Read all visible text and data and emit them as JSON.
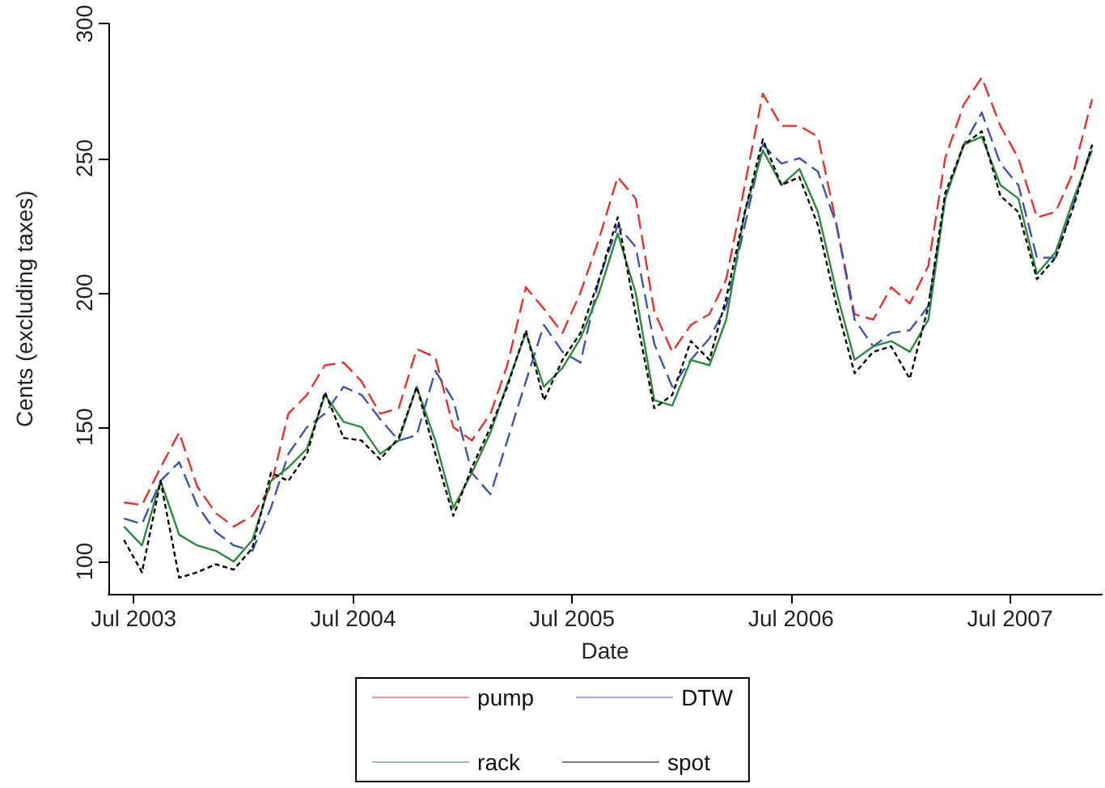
{
  "chart_data": {
    "type": "line",
    "xlabel": "Date",
    "ylabel": "Cents (excluding taxes)",
    "x": [
      "2003-06-15",
      "2003-07-15",
      "2003-08-15",
      "2003-09-15",
      "2003-10-15",
      "2003-11-15",
      "2003-12-15",
      "2004-01-15",
      "2004-02-15",
      "2004-03-15",
      "2004-04-15",
      "2004-05-15",
      "2004-06-15",
      "2004-07-15",
      "2004-08-15",
      "2004-09-15",
      "2004-10-15",
      "2004-11-15",
      "2004-12-15",
      "2005-01-15",
      "2005-02-15",
      "2005-03-15",
      "2005-04-15",
      "2005-05-15",
      "2005-06-15",
      "2005-07-15",
      "2005-08-15",
      "2005-09-15",
      "2005-10-15",
      "2005-11-15",
      "2005-12-15",
      "2006-01-15",
      "2006-02-15",
      "2006-03-15",
      "2006-04-15",
      "2006-05-15",
      "2006-06-15",
      "2006-07-15",
      "2006-08-15",
      "2006-09-15",
      "2006-10-15",
      "2006-11-15",
      "2006-12-15",
      "2007-01-15",
      "2007-02-15",
      "2007-03-15",
      "2007-04-15",
      "2007-05-15",
      "2007-06-15",
      "2007-07-15",
      "2007-08-15",
      "2007-09-15",
      "2007-10-15",
      "2007-11-15"
    ],
    "series": [
      {
        "name": "pump",
        "color": "#e8312a",
        "line_style": "dashed",
        "values": [
          122,
          121,
          135,
          148,
          128,
          118,
          113,
          117,
          128,
          155,
          162,
          173,
          174,
          167,
          155,
          157,
          179,
          176,
          150,
          145,
          155,
          173,
          202,
          194,
          185,
          200,
          220,
          243,
          235,
          193,
          178,
          188,
          192,
          205,
          240,
          274,
          262,
          262,
          258,
          225,
          192,
          190,
          202,
          196,
          210,
          250,
          270,
          280,
          262,
          250,
          228,
          230,
          245,
          272
        ]
      },
      {
        "name": "DTW",
        "color": "#3c55b5",
        "line_style": "dashed",
        "values": [
          116,
          114,
          130,
          137,
          121,
          111,
          106,
          104,
          120,
          140,
          150,
          155,
          165,
          162,
          153,
          145,
          147,
          171,
          160,
          133,
          125,
          145,
          167,
          188,
          178,
          174,
          205,
          225,
          217,
          181,
          165,
          175,
          183,
          195,
          225,
          255,
          248,
          250,
          245,
          225,
          190,
          180,
          185,
          186,
          195,
          235,
          255,
          267,
          248,
          240,
          213,
          213,
          233,
          255
        ]
      },
      {
        "name": "rack",
        "color": "#2e8b3e",
        "line_style": "solid",
        "values": [
          113,
          106,
          130,
          110,
          106,
          104,
          100,
          108,
          130,
          135,
          142,
          162,
          152,
          150,
          140,
          145,
          165,
          145,
          120,
          133,
          148,
          166,
          185,
          165,
          172,
          183,
          200,
          222,
          200,
          160,
          158,
          175,
          173,
          190,
          230,
          253,
          240,
          246,
          230,
          200,
          175,
          180,
          182,
          178,
          190,
          235,
          255,
          258,
          240,
          235,
          207,
          215,
          235,
          253
        ]
      },
      {
        "name": "spot",
        "color": "#000000",
        "line_style": "dotted",
        "values": [
          108,
          96,
          130,
          94,
          96,
          99,
          97,
          105,
          133,
          130,
          140,
          163,
          146,
          145,
          138,
          146,
          165,
          140,
          117,
          135,
          150,
          165,
          186,
          160,
          175,
          185,
          205,
          228,
          192,
          157,
          162,
          182,
          175,
          198,
          230,
          257,
          240,
          243,
          225,
          195,
          170,
          178,
          180,
          168,
          195,
          237,
          255,
          260,
          236,
          230,
          205,
          213,
          232,
          255
        ]
      }
    ],
    "xlim": [
      "2003-05-20",
      "2007-12-01"
    ],
    "xticks": [
      {
        "value": "2003-07-01",
        "label": "Jul 2003"
      },
      {
        "value": "2004-07-01",
        "label": "Jul 2004"
      },
      {
        "value": "2005-07-01",
        "label": "Jul 2005"
      },
      {
        "value": "2006-07-01",
        "label": "Jul 2006"
      },
      {
        "value": "2007-07-01",
        "label": "Jul 2007"
      }
    ],
    "ylim": [
      88,
      300
    ],
    "yticks": [
      100,
      150,
      200,
      250,
      300
    ],
    "grid": false,
    "legend": "bottom",
    "marker": "none"
  }
}
